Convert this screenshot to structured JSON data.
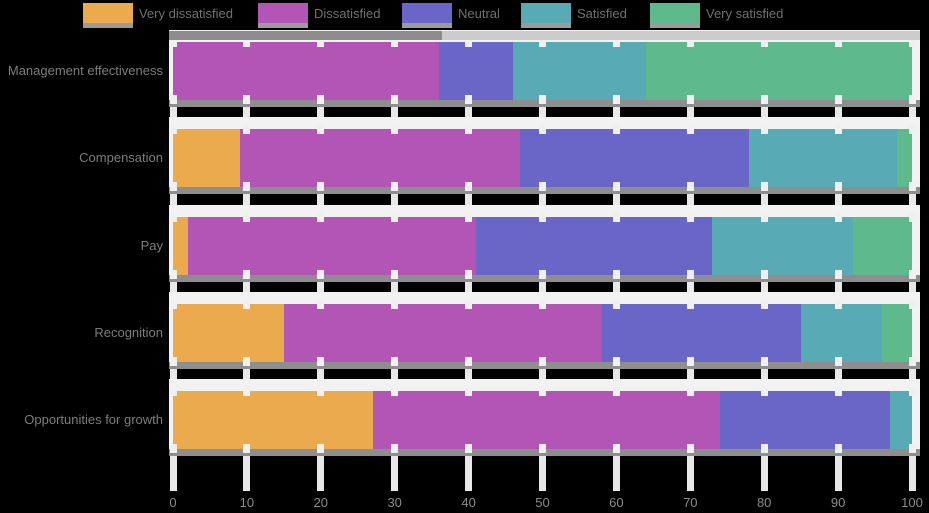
{
  "chart_data": {
    "type": "bar",
    "orientation": "horizontal",
    "stacked": true,
    "stack_mode": "percent",
    "title": "",
    "xlabel": "",
    "ylabel": "",
    "xlim": [
      0,
      100
    ],
    "x_ticks": [
      0,
      10,
      20,
      30,
      40,
      50,
      60,
      70,
      80,
      90,
      100
    ],
    "grid": true,
    "legend_position": "top",
    "categories": [
      "Management effectiveness",
      "Compensation",
      "Pay",
      "Recognition",
      "Opportunities for growth"
    ],
    "series": [
      {
        "name": "Very dissatisfied",
        "color": "#ecaa4f",
        "values": [
          0,
          9,
          2,
          15,
          27
        ]
      },
      {
        "name": "Dissatisfied",
        "color": "#b355b4",
        "values": [
          36,
          38,
          39,
          43,
          47
        ]
      },
      {
        "name": "Neutral",
        "color": "#6a66c7",
        "values": [
          10,
          31,
          32,
          27,
          23
        ]
      },
      {
        "name": "Satisfied",
        "color": "#58abb4",
        "values": [
          18,
          20,
          19,
          11,
          3
        ]
      },
      {
        "name": "Very satisfied",
        "color": "#5eba8c",
        "values": [
          36,
          2,
          8,
          4,
          0
        ]
      }
    ],
    "colors": {
      "background": "#000000",
      "row_band": "#f2f2f2",
      "gridline": "#e8e8e8",
      "bar_shadow": "#8e8e8e",
      "label_text": "#7c7c7c",
      "tick_text": "#8a8a8a",
      "legend_text": "#6f6f6f"
    }
  }
}
